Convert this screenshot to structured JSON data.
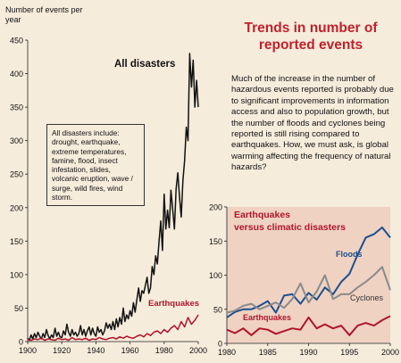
{
  "text": {
    "title": "Trends in number of reported events",
    "paragraph": "Much of the increase in the number of hazardous events reported is probably due to significant improvements in information access and also to population growth, but the number of floods and cyclones being reported is still rising compared to earthquakes. How, we must ask, is global warming affecting the frequency of natural hazards?",
    "note": "All disasters include: drought, earthquake, extreme temperatures, famine, flood, insect infestation, slides, volcanic eruption, wave / surge, wild fires, wind storm."
  },
  "colors": {
    "background": "#f6ecdc",
    "panel": "#efd2c2",
    "all_disasters": "#111111",
    "earthquakes": "#b0152a",
    "floods": "#1d4f8f",
    "cyclones": "#8a8a8a",
    "title": "#c0212b"
  },
  "chart_data": [
    {
      "type": "line",
      "ylabel": "Number of events per year",
      "xlim": [
        1900,
        2000
      ],
      "ylim": [
        0,
        450
      ],
      "xticks": [
        1900,
        1920,
        1940,
        1960,
        1980,
        2000
      ],
      "yticks": [
        0,
        50,
        100,
        150,
        200,
        250,
        300,
        350,
        400,
        450
      ],
      "series": [
        {
          "name": "All disasters",
          "x": [
            1900,
            1901,
            1902,
            1903,
            1904,
            1905,
            1906,
            1907,
            1908,
            1909,
            1910,
            1911,
            1912,
            1913,
            1914,
            1915,
            1916,
            1917,
            1918,
            1919,
            1920,
            1921,
            1922,
            1923,
            1924,
            1925,
            1926,
            1927,
            1928,
            1929,
            1930,
            1931,
            1932,
            1933,
            1934,
            1935,
            1936,
            1937,
            1938,
            1939,
            1940,
            1941,
            1942,
            1943,
            1944,
            1945,
            1946,
            1947,
            1948,
            1949,
            1950,
            1951,
            1952,
            1953,
            1954,
            1955,
            1956,
            1957,
            1958,
            1959,
            1960,
            1961,
            1962,
            1963,
            1964,
            1965,
            1966,
            1967,
            1968,
            1969,
            1970,
            1971,
            1972,
            1973,
            1974,
            1975,
            1976,
            1977,
            1978,
            1979,
            1980,
            1981,
            1982,
            1983,
            1984,
            1985,
            1986,
            1987,
            1988,
            1989,
            1990,
            1991,
            1992,
            1993,
            1994,
            1995,
            1996,
            1997,
            1998,
            1999,
            2000
          ],
          "y": [
            5,
            2,
            10,
            4,
            12,
            6,
            14,
            8,
            4,
            12,
            6,
            18,
            9,
            4,
            10,
            6,
            20,
            8,
            14,
            7,
            6,
            16,
            10,
            26,
            14,
            8,
            18,
            10,
            14,
            8,
            12,
            24,
            10,
            18,
            8,
            16,
            22,
            10,
            20,
            12,
            8,
            22,
            14,
            18,
            10,
            16,
            28,
            20,
            26,
            18,
            30,
            18,
            34,
            22,
            36,
            26,
            50,
            30,
            40,
            34,
            46,
            38,
            58,
            44,
            62,
            80,
            60,
            76,
            72,
            84,
            96,
            72,
            80,
            112,
            100,
            128,
            116,
            150,
            180,
            136,
            220,
            168,
            196,
            170,
            226,
            198,
            168,
            228,
            252,
            216,
            186,
            240,
            270,
            320,
            300,
            430,
            380,
            420,
            350,
            390,
            350
          ]
        },
        {
          "name": "Earthquakes",
          "x": [
            1900,
            1902,
            1904,
            1906,
            1908,
            1910,
            1912,
            1914,
            1916,
            1918,
            1920,
            1922,
            1924,
            1926,
            1928,
            1930,
            1932,
            1934,
            1936,
            1938,
            1940,
            1942,
            1944,
            1946,
            1948,
            1950,
            1952,
            1954,
            1956,
            1958,
            1960,
            1962,
            1964,
            1966,
            1968,
            1970,
            1972,
            1974,
            1976,
            1978,
            1980,
            1982,
            1984,
            1986,
            1988,
            1990,
            1992,
            1994,
            1996,
            1998,
            2000
          ],
          "y": [
            3,
            2,
            4,
            3,
            5,
            2,
            4,
            3,
            2,
            5,
            3,
            4,
            2,
            6,
            3,
            4,
            3,
            5,
            2,
            4,
            3,
            6,
            4,
            3,
            5,
            6,
            4,
            7,
            5,
            8,
            6,
            5,
            8,
            10,
            7,
            12,
            9,
            14,
            16,
            12,
            18,
            14,
            20,
            24,
            18,
            30,
            22,
            36,
            26,
            32,
            40
          ]
        }
      ],
      "annotations": [
        "All disasters",
        "Earthquakes"
      ]
    },
    {
      "type": "line",
      "title": "Earthquakes versus climatic disasters",
      "xlim": [
        1980,
        2000
      ],
      "ylim": [
        0,
        200
      ],
      "xticks": [
        1980,
        1985,
        1990,
        1995,
        2000
      ],
      "yticks": [
        0,
        50,
        100,
        150,
        200
      ],
      "series": [
        {
          "name": "Floods",
          "x": [
            1980,
            1981,
            1982,
            1983,
            1984,
            1985,
            1986,
            1987,
            1988,
            1989,
            1990,
            1991,
            1992,
            1993,
            1994,
            1995,
            1996,
            1997,
            1998,
            1999,
            2000
          ],
          "y": [
            38,
            46,
            50,
            50,
            55,
            62,
            45,
            70,
            72,
            58,
            74,
            64,
            82,
            72,
            90,
            102,
            130,
            155,
            160,
            170,
            155
          ]
        },
        {
          "name": "Cyclones",
          "x": [
            1980,
            1981,
            1982,
            1983,
            1984,
            1985,
            1986,
            1987,
            1988,
            1989,
            1990,
            1991,
            1992,
            1993,
            1994,
            1995,
            1996,
            1997,
            1998,
            1999,
            2000
          ],
          "y": [
            45,
            48,
            55,
            58,
            50,
            55,
            60,
            52,
            65,
            88,
            60,
            76,
            100,
            65,
            72,
            72,
            82,
            90,
            100,
            112,
            78
          ]
        },
        {
          "name": "Earthquakes",
          "x": [
            1980,
            1981,
            1982,
            1983,
            1984,
            1985,
            1986,
            1987,
            1988,
            1989,
            1990,
            1991,
            1992,
            1993,
            1994,
            1995,
            1996,
            1997,
            1998,
            1999,
            2000
          ],
          "y": [
            20,
            15,
            22,
            12,
            22,
            20,
            14,
            18,
            22,
            20,
            38,
            22,
            28,
            22,
            26,
            12,
            26,
            30,
            26,
            34,
            40
          ]
        }
      ]
    }
  ]
}
